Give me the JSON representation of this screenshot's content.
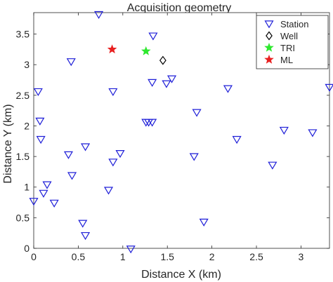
{
  "chart_data": {
    "type": "scatter",
    "title": "Acquisition geometry",
    "xlabel": "Distance X (km)",
    "ylabel": "Distance Y (km)",
    "xlim": [
      0,
      3.32
    ],
    "ylim": [
      0,
      3.85
    ],
    "xticks": [
      "0",
      "0.5",
      "1",
      "1.5",
      "2",
      "2.5",
      "3"
    ],
    "yticks": [
      "0",
      "0.5",
      "1",
      "1.5",
      "2",
      "2.5",
      "3",
      "3.5"
    ],
    "xtick_values": [
      0,
      0.5,
      1,
      1.5,
      2,
      2.5,
      3
    ],
    "ytick_values": [
      0,
      0.5,
      1,
      1.5,
      2,
      2.5,
      3,
      3.5
    ],
    "grid": false,
    "legend_position": "top-right",
    "series": [
      {
        "name": "Station",
        "marker": "triangle-down",
        "color": "#1f1fd8",
        "points": [
          [
            0.73,
            3.82
          ],
          [
            1.34,
            3.47
          ],
          [
            0.42,
            3.05
          ],
          [
            2.58,
            3.17
          ],
          [
            0.05,
            2.56
          ],
          [
            0.89,
            2.56
          ],
          [
            1.33,
            2.71
          ],
          [
            1.49,
            2.69
          ],
          [
            1.55,
            2.77
          ],
          [
            2.18,
            2.61
          ],
          [
            3.32,
            2.63
          ],
          [
            0.07,
            2.08
          ],
          [
            1.26,
            2.06
          ],
          [
            1.29,
            2.06
          ],
          [
            1.33,
            2.06
          ],
          [
            1.83,
            2.22
          ],
          [
            0.08,
            1.78
          ],
          [
            2.28,
            1.78
          ],
          [
            2.81,
            1.93
          ],
          [
            3.13,
            1.89
          ],
          [
            0.58,
            1.66
          ],
          [
            0.39,
            1.53
          ],
          [
            0.97,
            1.55
          ],
          [
            1.8,
            1.5
          ],
          [
            0.89,
            1.41
          ],
          [
            2.68,
            1.36
          ],
          [
            0.43,
            1.19
          ],
          [
            0.15,
            1.04
          ],
          [
            0.11,
            0.9
          ],
          [
            0.84,
            0.95
          ],
          [
            0.0,
            0.77
          ],
          [
            0.23,
            0.74
          ],
          [
            0.55,
            0.41
          ],
          [
            1.91,
            0.43
          ],
          [
            0.58,
            0.21
          ],
          [
            1.09,
            -0.01
          ]
        ]
      },
      {
        "name": "Well",
        "marker": "diamond",
        "color": "#000000",
        "points": [
          [
            1.45,
            3.07
          ]
        ]
      },
      {
        "name": "TRI",
        "marker": "star",
        "color": "#2ee82e",
        "points": [
          [
            1.26,
            3.22
          ]
        ]
      },
      {
        "name": "ML",
        "marker": "star",
        "color": "#e82020",
        "points": [
          [
            0.88,
            3.25
          ]
        ]
      }
    ]
  }
}
